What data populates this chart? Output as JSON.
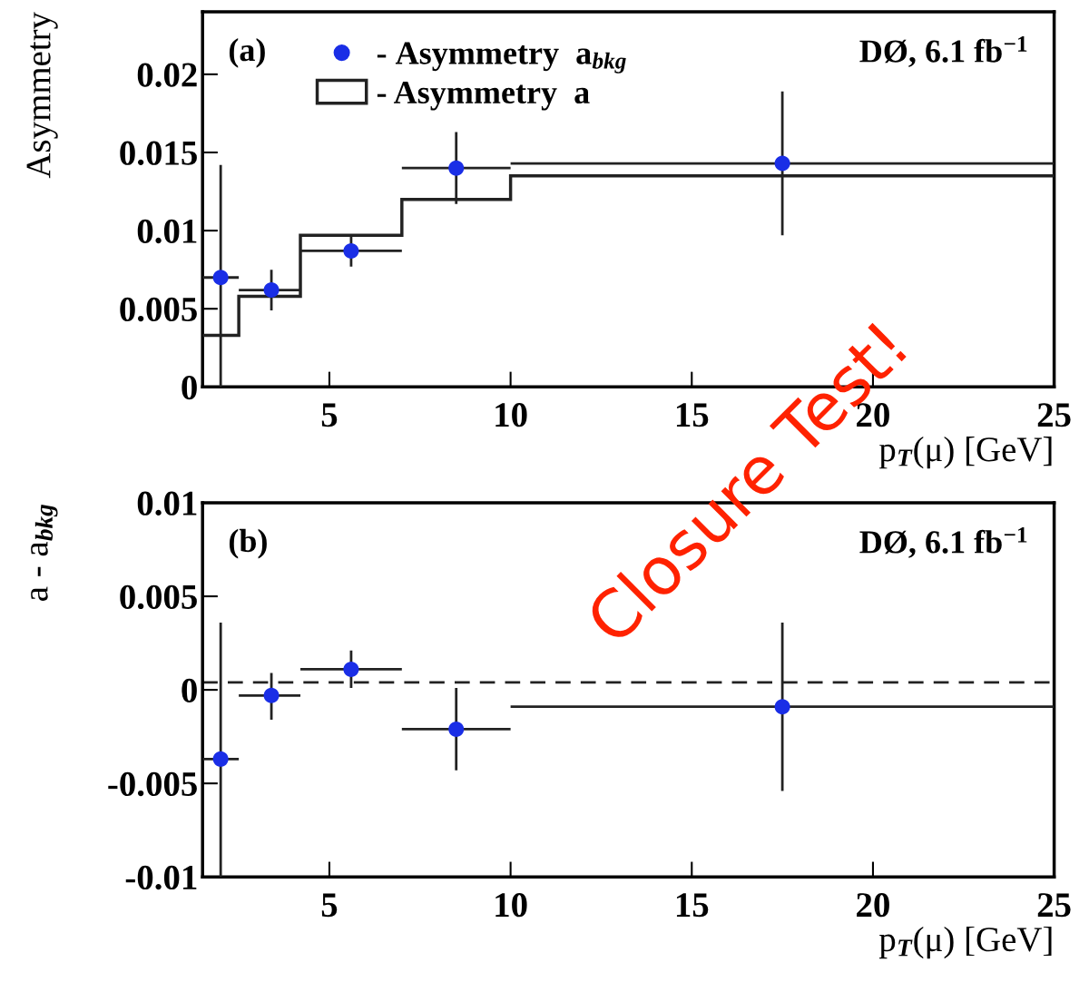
{
  "chart_data": [
    {
      "type": "scatter",
      "xlabel": "p$_{T}$(μ) [GeV]",
      "ylabel": "Asymmetry",
      "annotations": [
        "(a)",
        "DØ, 6.1 fb$^{−1}$",
        "Closure Test!"
      ],
      "xlim": [
        1.5,
        25
      ],
      "xticks": [
        5,
        10,
        15,
        20,
        25
      ],
      "ylim": [
        0,
        0.024
      ],
      "yticks": [
        0,
        0.005,
        0.01,
        0.015,
        0.02
      ],
      "legend": "top left",
      "marker": "circle",
      "series": [
        {
          "name": "- Asymmetry  a$_{bkg}$",
          "color": "#1a2ee6",
          "x": [
            2.0,
            3.4,
            5.6,
            8.5,
            17.5
          ],
          "values": [
            0.007,
            0.0062,
            0.0087,
            0.014,
            0.0143
          ],
          "errors": [
            [
              0,
              0.0142
            ],
            0.0013,
            0.001,
            0.0023,
            0.0046
          ],
          "xerrors": [
            0.5,
            [
              2.5,
              4.2
            ],
            1.4,
            1.5,
            7.5
          ]
        },
        {
          "name": "- Asymmetry  a",
          "type": "histogram",
          "color": "#222222",
          "bins": [
            1.5,
            2.5,
            4.2,
            7,
            10,
            25
          ],
          "values": [
            0.0033,
            0.0058,
            0.0097,
            0.012,
            0.0135
          ]
        }
      ]
    },
    {
      "type": "scatter",
      "xlabel": "p$_{T}$(μ) [GeV]",
      "ylabel": "a - a$_{bkg}$",
      "annotations": [
        "(b)",
        "DØ, 6.1 fb$^{−1}$"
      ],
      "xlim": [
        1.5,
        25
      ],
      "xticks": [
        5,
        10,
        15,
        20,
        25
      ],
      "ylim": [
        -0.01,
        0.01
      ],
      "yticks": [
        -0.01,
        -0.005,
        0,
        0.005,
        0.01
      ],
      "marker": "circle",
      "ref_lines": [
        {
          "axis": "y",
          "value": 0.0004,
          "color": "#222222",
          "line_style": "dashed"
        }
      ],
      "series": [
        {
          "color": "#1a2ee6",
          "x": [
            2.0,
            3.4,
            5.6,
            8.5,
            17.5
          ],
          "values": [
            -0.0037,
            -0.0003,
            0.0011,
            -0.0021,
            -0.0009
          ],
          "errors": [
            [
              -0.01,
              0.0036
            ],
            [
              -0.0016,
              0.0009
            ],
            0.001,
            0.0022,
            0.0045
          ],
          "xerrors": [
            0.5,
            [
              2.5,
              4.2
            ],
            1.4,
            1.5,
            7.5
          ]
        }
      ]
    }
  ]
}
